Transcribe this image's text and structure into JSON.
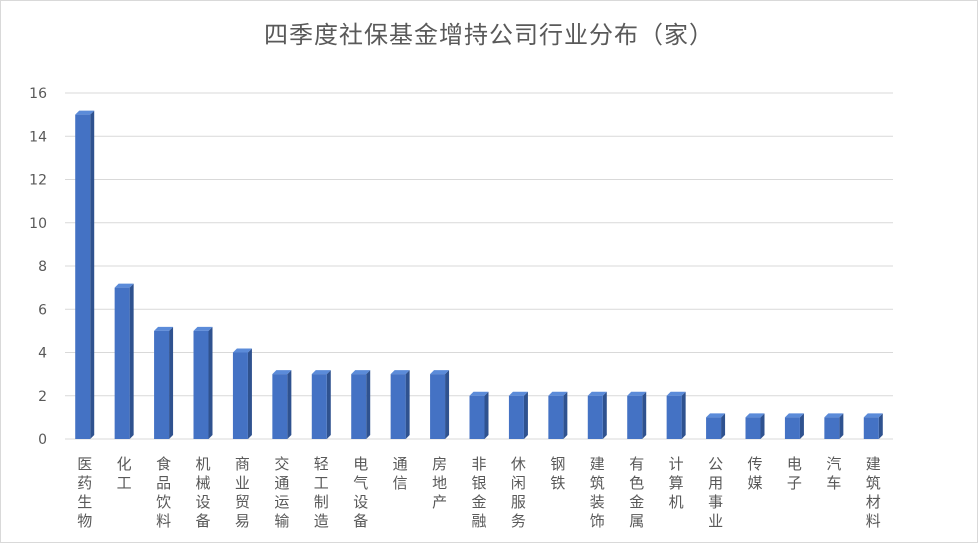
{
  "chart_data": {
    "type": "bar",
    "title": "四季度社保基金增持公司行业分布（家）",
    "xlabel": "",
    "ylabel": "",
    "ylim": [
      0,
      16
    ],
    "yticks": [
      0,
      2,
      4,
      6,
      8,
      10,
      12,
      14,
      16
    ],
    "grid": true,
    "legend": "none",
    "bar_color": "#4472C4",
    "bar_side_color": "#2F528F",
    "bar_top_color": "#5B8BD9",
    "categories": [
      "医药生物",
      "化工",
      "食品饮料",
      "机械设备",
      "商业贸易",
      "交通运输",
      "轻工制造",
      "电气设备",
      "通信",
      "房地产",
      "非银金融",
      "休闲服务",
      "钢铁",
      "建筑装饰",
      "有色金属",
      "计算机",
      "公用事业",
      "传媒",
      "电子",
      "汽车",
      "建筑材料"
    ],
    "values": [
      15,
      7,
      5,
      5,
      4,
      3,
      3,
      3,
      3,
      3,
      2,
      2,
      2,
      2,
      2,
      2,
      1,
      1,
      1,
      1,
      1
    ]
  }
}
